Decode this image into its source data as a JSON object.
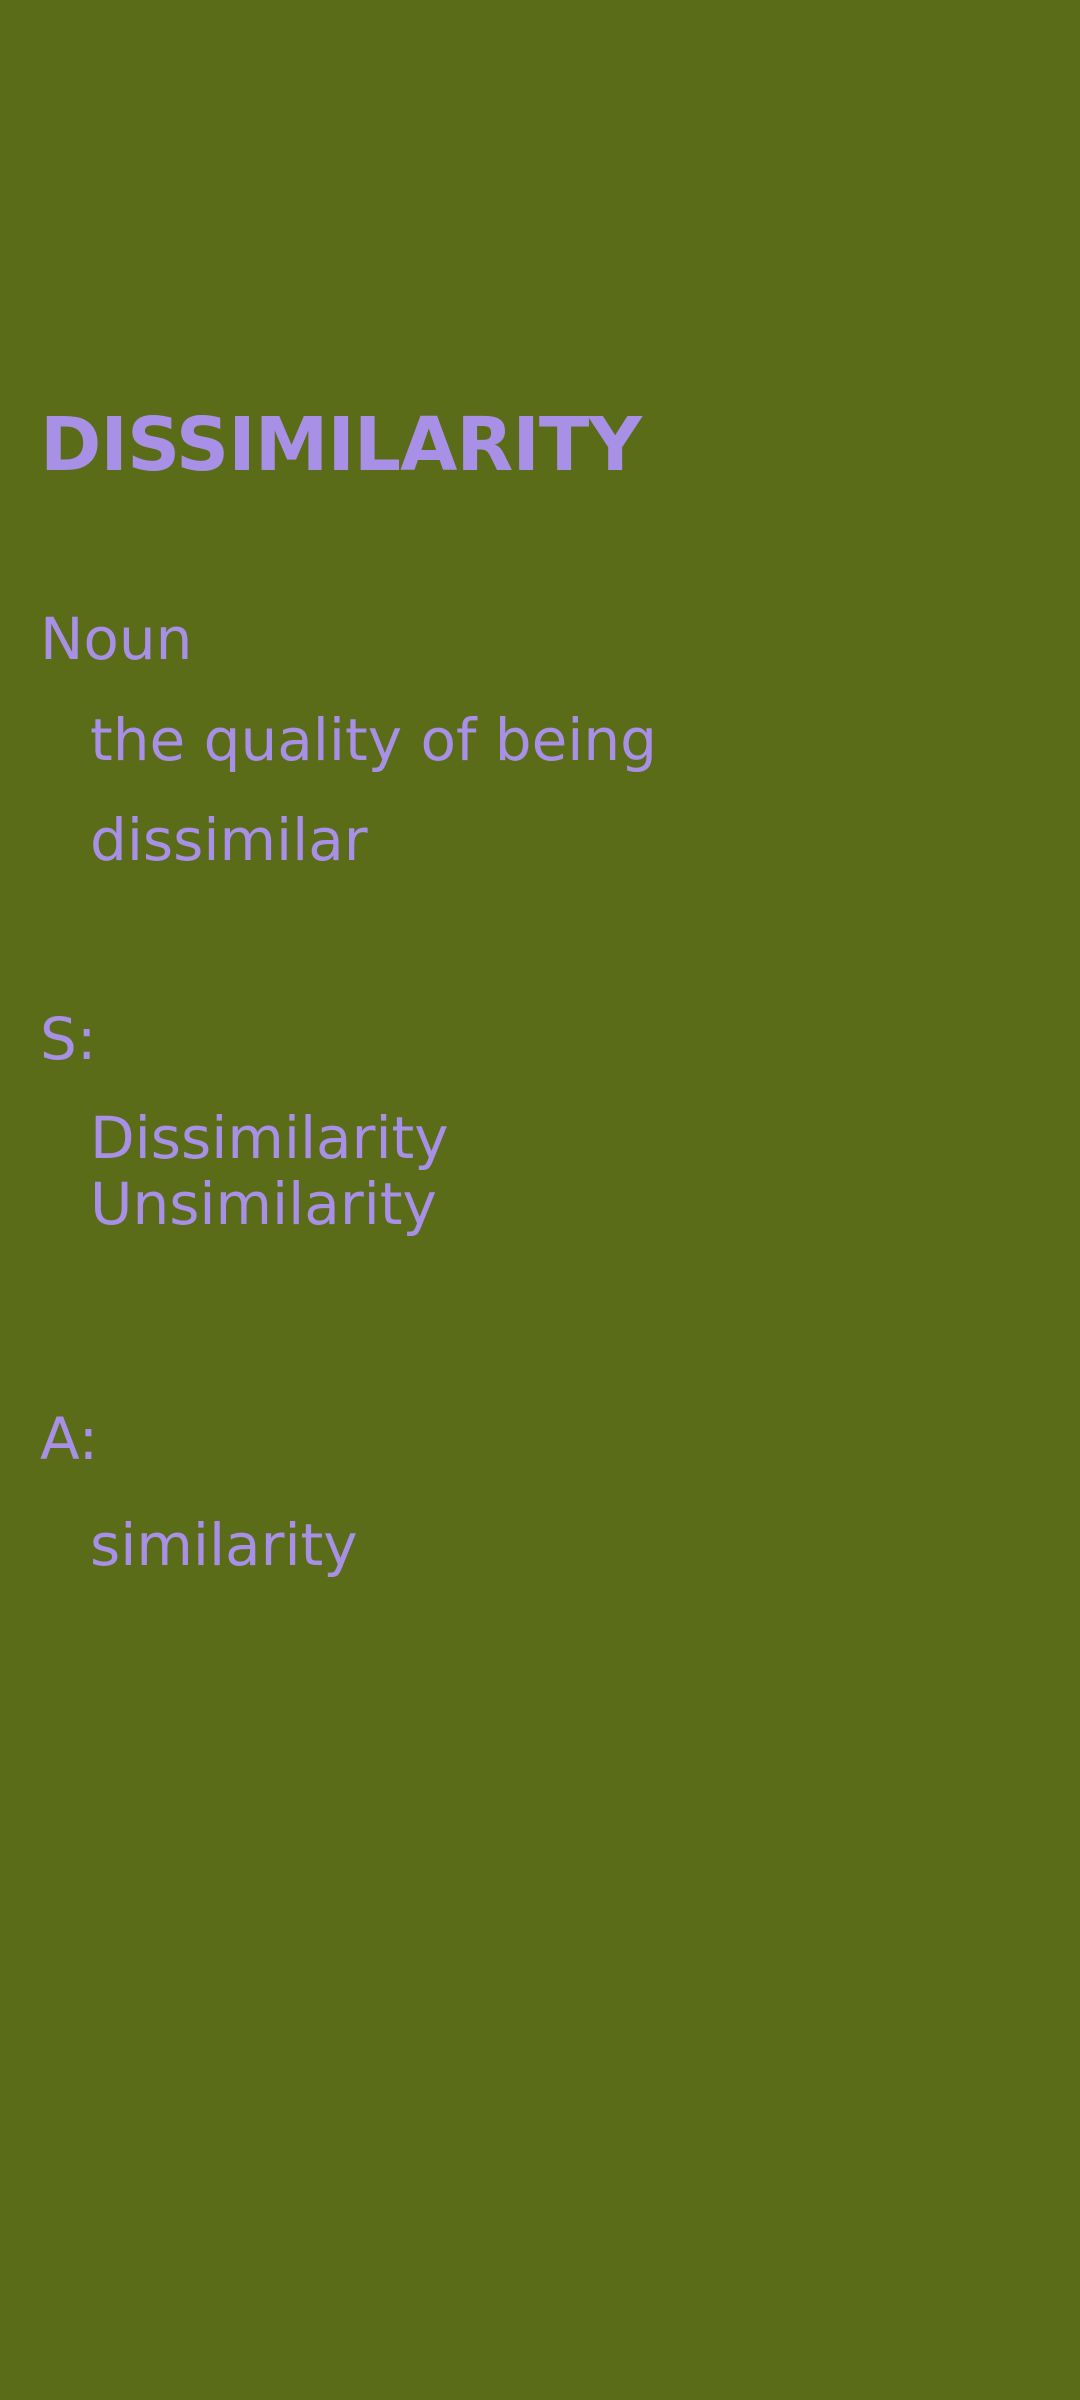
{
  "entry": {
    "word": "DISSIMILARITY",
    "part_of_speech": "Noun",
    "definition_lines": [
      "the quality of being",
      "dissimilar"
    ],
    "synonyms_label": "S:",
    "synonyms": [
      "Dissimilarity",
      "Unsimilarity"
    ],
    "antonyms_label": "A:",
    "antonyms": [
      "similarity"
    ]
  },
  "colors": {
    "background": "#5b6c19",
    "text": "#a790e6"
  }
}
